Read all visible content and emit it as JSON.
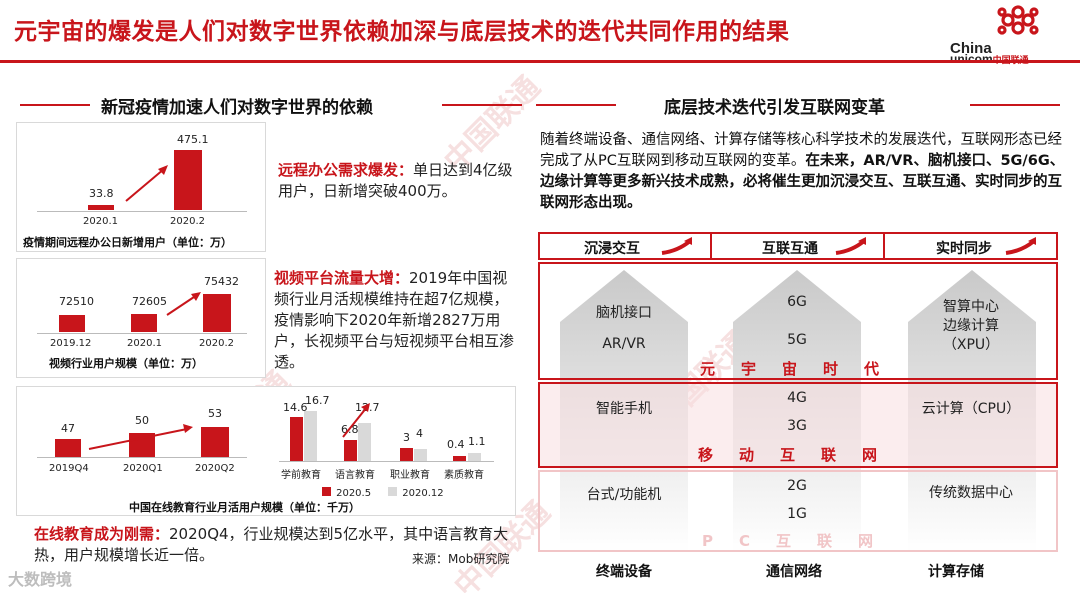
{
  "title": "元宇宙的爆发是人们对数字世界依赖加深与底层技术的迭代共同作用的结果",
  "logo": {
    "china": "China",
    "unicom": "unicom",
    "cn": "中国联通"
  },
  "left": {
    "heading": "新冠疫情加速人们对数字世界的依赖",
    "chart1": {
      "categories": [
        "2020.1",
        "2020.2"
      ],
      "values": [
        "33.8",
        "475.1"
      ],
      "caption": "疫情期间远程办公日新增用户（单位：万）"
    },
    "desc1": {
      "bold": "远程办公需求爆发：",
      "text": "单日达到4亿级用户，日新增突破400万。"
    },
    "chart2": {
      "categories": [
        "2019.12",
        "2020.1",
        "2020.2"
      ],
      "values": [
        "72510",
        "72605",
        "75432"
      ],
      "caption": "视频行业用户规模（单位：万）"
    },
    "desc2": {
      "bold": "视频平台流量大增：",
      "text": "2019年中国视频行业月活规模维持在超7亿规模，疫情影响下2020年新增2827万用户，长视频平台与短视频平台相互渗透。"
    },
    "chart3": {
      "categories": [
        "2019Q4",
        "2020Q1",
        "2020Q2"
      ],
      "values": [
        "47",
        "50",
        "53"
      ]
    },
    "chart4": {
      "categories": [
        "学前教育",
        "语言教育",
        "职业教育",
        "素质教育"
      ],
      "series": [
        {
          "name": "2020.5",
          "values": [
            "14.6",
            "6.8",
            "3",
            "0.4"
          ]
        },
        {
          "name": "2020.12",
          "values": [
            "16.7",
            "12.7",
            "4",
            "1.1"
          ]
        }
      ],
      "caption": "中国在线教育行业月活用户规模（单位：千万）"
    },
    "desc3": {
      "bold": "在线教育成为刚需：",
      "text": "2020Q4，行业规模达到5亿水平，其中语言教育大热，用户规模增长近一倍。"
    },
    "source": "来源：Mob研究院"
  },
  "chart_data": [
    {
      "type": "bar",
      "categories": [
        "2020.1",
        "2020.2"
      ],
      "values": [
        33.8,
        475.1
      ],
      "title": "疫情期间远程办公日新增用户（单位：万）"
    },
    {
      "type": "bar",
      "categories": [
        "2019.12",
        "2020.1",
        "2020.2"
      ],
      "values": [
        72510,
        72605,
        75432
      ],
      "title": "视频行业用户规模（单位：万）"
    },
    {
      "type": "bar",
      "categories": [
        "2019Q4",
        "2020Q1",
        "2020Q2"
      ],
      "values": [
        47,
        50,
        53
      ]
    },
    {
      "type": "bar",
      "categories": [
        "学前教育",
        "语言教育",
        "职业教育",
        "素质教育"
      ],
      "series": [
        {
          "name": "2020.5",
          "values": [
            14.6,
            6.8,
            3,
            0.4
          ]
        },
        {
          "name": "2020.12",
          "values": [
            16.7,
            12.7,
            4,
            1.1
          ]
        }
      ],
      "title": "中国在线教育行业月活用户规模（单位：千万）"
    }
  ],
  "right": {
    "heading": "底层技术迭代引发互联网变革",
    "intro_plain": "随着终端设备、通信网络、计算存储等核心科学技术的发展迭代，互联网形态已经完成了从PC互联网到移动互联网的变革。",
    "intro_bold": "在未来，AR/VR、脑机接口、5G/6G、边缘计算等更多新兴技术成熟，必将催生更加沉浸交互、互联互通、实时同步的互联网形态出现。",
    "columns": [
      "沉浸交互",
      "互联互通",
      "实时同步"
    ],
    "row1": {
      "c1a": "脑机接口",
      "c1b": "AR/VR",
      "c2a": "6G",
      "c2b": "5G",
      "c3a": "智算中心",
      "c3b": "边缘计算",
      "c3c": "（XPU）",
      "era": "元宇宙时代"
    },
    "row2": {
      "c1": "智能手机",
      "c2a": "4G",
      "c2b": "3G",
      "c3": "云计算（CPU）",
      "era": "移动互联网"
    },
    "row3": {
      "c1": "台式/功能机",
      "c2a": "2G",
      "c2b": "1G",
      "c3": "传统数据中心",
      "era": "PC互联网"
    },
    "footers": [
      "终端设备",
      "通信网络",
      "计算存储"
    ]
  },
  "watermark": {
    "text": "中国联通",
    "en": "China unicom"
  },
  "corner": "大数跨境",
  "colors": {
    "accent": "#c8151b",
    "light": "#f1c5c7",
    "gray": "#d9d9d9"
  }
}
